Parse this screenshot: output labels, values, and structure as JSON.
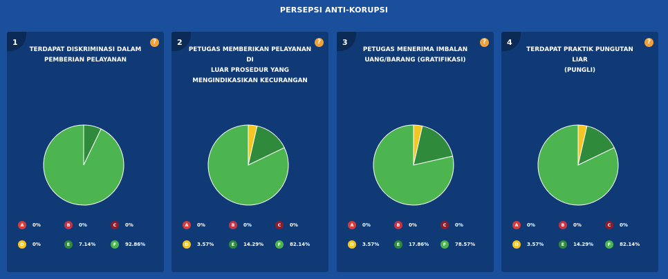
{
  "page_title": "PERSEPSI ANTI-KORUPSI",
  "help_label": "?",
  "colors": {
    "A": "#d93a3a",
    "B": "#c73345",
    "C": "#8e1c2a",
    "D": "#f3c623",
    "E": "#2f8a3b",
    "F": "#4db54f"
  },
  "legend_letters": [
    "A",
    "B",
    "C",
    "D",
    "E",
    "F"
  ],
  "chart_data": [
    {
      "type": "pie",
      "number": "1",
      "title_lines": [
        "TERDAPAT DISKRIMINASI DALAM",
        "PEMBERIAN PELAYANAN"
      ],
      "categories": [
        "A",
        "B",
        "C",
        "D",
        "E",
        "F"
      ],
      "values": [
        0,
        0,
        0,
        0,
        7.14,
        92.86
      ],
      "labels": [
        "0%",
        "0%",
        "0%",
        "0%",
        "7.14%",
        "92.86%"
      ]
    },
    {
      "type": "pie",
      "number": "2",
      "title_lines": [
        "PETUGAS MEMBERIKAN PELAYANAN DI",
        "LUAR PROSEDUR YANG",
        "MENGINDIKASIKAN KECURANGAN"
      ],
      "categories": [
        "A",
        "B",
        "C",
        "D",
        "E",
        "F"
      ],
      "values": [
        0,
        0,
        0,
        3.57,
        14.29,
        82.14
      ],
      "labels": [
        "0%",
        "0%",
        "0%",
        "3.57%",
        "14.29%",
        "82.14%"
      ]
    },
    {
      "type": "pie",
      "number": "3",
      "title_lines": [
        "PETUGAS MENERIMA IMBALAN",
        "UANG/BARANG (GRATIFIKASI)"
      ],
      "categories": [
        "A",
        "B",
        "C",
        "D",
        "E",
        "F"
      ],
      "values": [
        0,
        0,
        0,
        3.57,
        17.86,
        78.57
      ],
      "labels": [
        "0%",
        "0%",
        "0%",
        "3.57%",
        "17.86%",
        "78.57%"
      ]
    },
    {
      "type": "pie",
      "number": "4",
      "title_lines": [
        "TERDAPAT PRAKTIK PUNGUTAN LIAR",
        "(PUNGLI)"
      ],
      "categories": [
        "A",
        "B",
        "C",
        "D",
        "E",
        "F"
      ],
      "values": [
        0,
        0,
        0,
        3.57,
        14.29,
        82.14
      ],
      "labels": [
        "0%",
        "0%",
        "0%",
        "3.57%",
        "14.29%",
        "82.14%"
      ]
    }
  ]
}
